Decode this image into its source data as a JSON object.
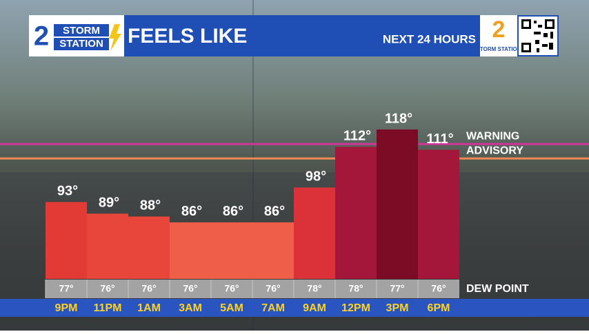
{
  "header": {
    "logo_number": "2",
    "logo_line1": "STORM",
    "logo_line2": "STATION",
    "title": "FEELS LIKE",
    "subtitle": "NEXT 24 HOURS",
    "corner_number": "2",
    "corner_text": "STORM STATION"
  },
  "chart_data": {
    "type": "bar",
    "categories": [
      "9PM",
      "11PM",
      "1AM",
      "3AM",
      "5AM",
      "7AM",
      "9AM",
      "12PM",
      "3PM",
      "6PM"
    ],
    "values": [
      93,
      89,
      88,
      86,
      86,
      86,
      98,
      112,
      118,
      111
    ],
    "value_labels": [
      "93°",
      "89°",
      "88°",
      "86°",
      "86°",
      "86°",
      "98°",
      "112°",
      "118°",
      "111°"
    ],
    "colors": [
      "#e23a35",
      "#e8463a",
      "#e8463a",
      "#ef5e48",
      "#ef5e48",
      "#ef5e48",
      "#da3238",
      "#a5173a",
      "#7c0b25",
      "#a5173a"
    ],
    "ylim": [
      66.5,
      118
    ],
    "reference_lines": [
      {
        "label": "WARNING",
        "value": 113,
        "color": "#d0359a"
      },
      {
        "label": "ADVISORY",
        "value": 108,
        "color": "#f08a55"
      }
    ],
    "dew_point": {
      "label": "DEW POINT",
      "values": [
        77,
        76,
        76,
        76,
        76,
        76,
        78,
        78,
        77,
        76
      ],
      "value_labels": [
        "77°",
        "76°",
        "76°",
        "76°",
        "76°",
        "76°",
        "78°",
        "78°",
        "77°",
        "76°"
      ]
    }
  }
}
